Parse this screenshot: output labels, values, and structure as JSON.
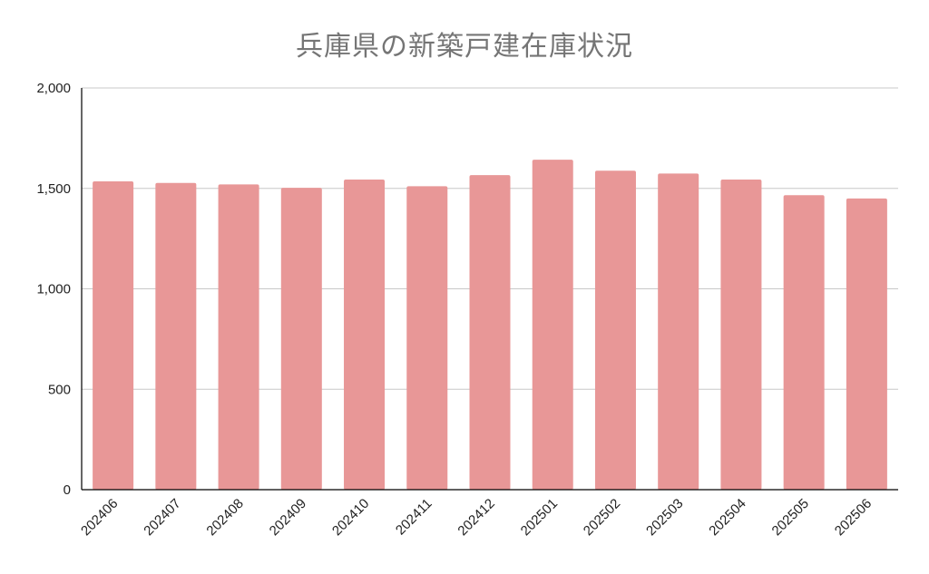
{
  "chart_data": {
    "type": "bar",
    "title": "兵庫県の新築戸建在庫状況",
    "categories": [
      "202406",
      "202407",
      "202408",
      "202409",
      "202410",
      "202411",
      "202412",
      "202501",
      "202502",
      "202503",
      "202504",
      "202505",
      "202506"
    ],
    "values": [
      1535,
      1527,
      1520,
      1503,
      1544,
      1511,
      1566,
      1643,
      1588,
      1574,
      1544,
      1466,
      1450
    ],
    "ylim": [
      0,
      2000
    ],
    "yticks": [
      0,
      500,
      1000,
      1500,
      2000
    ],
    "ytick_labels": [
      "0",
      "500",
      "1,000",
      "1,500",
      "2,000"
    ],
    "grid": true,
    "bar_color": "#e89797",
    "grid_color": "#c8c8c8",
    "axis_color": "#000000"
  }
}
